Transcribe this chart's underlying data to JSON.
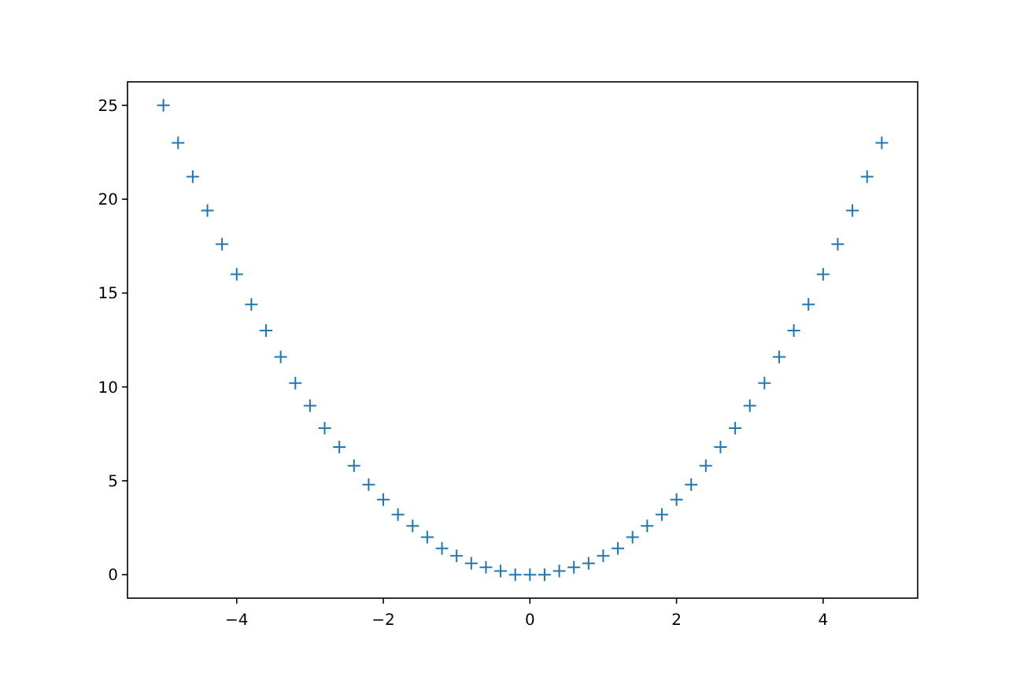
{
  "chart_data": {
    "type": "scatter",
    "marker": "cross",
    "grid": false,
    "x": [
      -5,
      -4.8,
      -4.6,
      -4.4,
      -4.2,
      -4,
      -3.8,
      -3.6,
      -3.4,
      -3.2,
      -3,
      -2.8,
      -2.6,
      -2.4,
      -2.2,
      -2,
      -1.8,
      -1.6,
      -1.4,
      -1.2,
      -1,
      -0.8,
      -0.6,
      -0.4,
      -0.2,
      0,
      0.2,
      0.4,
      0.6,
      0.8,
      1,
      1.2,
      1.4,
      1.6,
      1.8,
      2,
      2.2,
      2.4,
      2.6,
      2.8,
      3,
      3.2,
      3.4,
      3.6,
      3.8,
      4,
      4.2,
      4.4,
      4.6,
      4.8
    ],
    "series": [
      {
        "color": "#1f77b4",
        "values": [
          25,
          23,
          21.2,
          19.4,
          17.6,
          16,
          14.4,
          13,
          11.6,
          10.2,
          9,
          7.8,
          6.8,
          5.8,
          4.8,
          4,
          3.2,
          2.6,
          2,
          1.4,
          1,
          0.6,
          0.4,
          0.2,
          0,
          0,
          0,
          0.2,
          0.4,
          0.6,
          1,
          1.4,
          2,
          2.6,
          3.2,
          4,
          4.8,
          5.8,
          6.8,
          7.8,
          9,
          10.2,
          11.6,
          13,
          14.4,
          16,
          17.6,
          19.4,
          21.2,
          23
        ]
      }
    ],
    "xlim": [
      -5.49,
      5.29
    ],
    "xticks": [
      {
        "value": -4,
        "label": "−4"
      },
      {
        "value": -2,
        "label": "−2"
      },
      0,
      2,
      4
    ],
    "ylim": [
      -1.25,
      26.25
    ],
    "yticks": [
      0,
      5,
      10,
      15,
      20,
      25
    ]
  }
}
